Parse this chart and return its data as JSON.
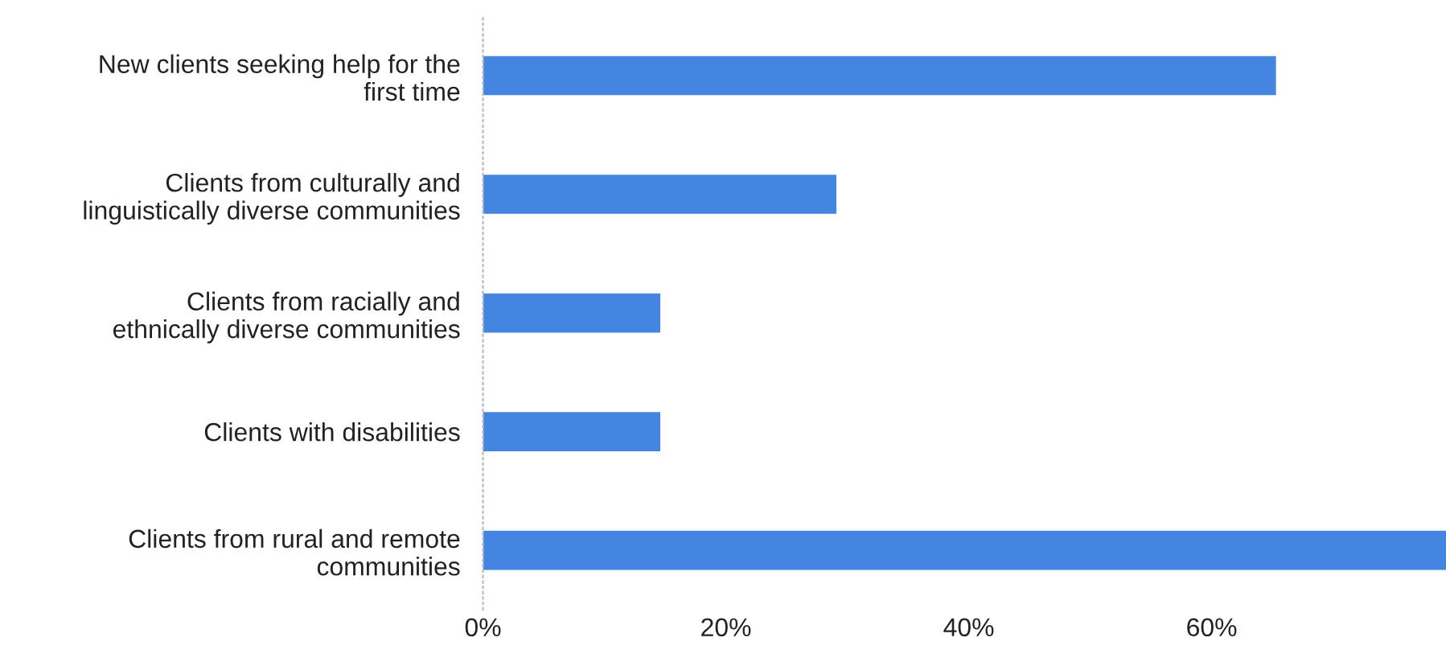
{
  "chart_data": {
    "type": "bar",
    "orientation": "horizontal",
    "categories": [
      "New clients seeking help for the first time",
      "Clients from culturally and linguistically diverse communities",
      "Clients from racially and ethnically diverse communities",
      "Clients with disabilities",
      "Clients from rural and remote communities"
    ],
    "values": [
      65.3,
      29.1,
      14.6,
      14.6,
      79.3
    ],
    "color": "#4385e0",
    "xlim": [
      0,
      79.3
    ],
    "xticks": [
      {
        "value": 0,
        "label": "0%"
      },
      {
        "value": 20,
        "label": "20%"
      },
      {
        "value": 40,
        "label": "40%"
      },
      {
        "value": 60,
        "label": "60%"
      }
    ],
    "grid": false,
    "legend": false
  }
}
